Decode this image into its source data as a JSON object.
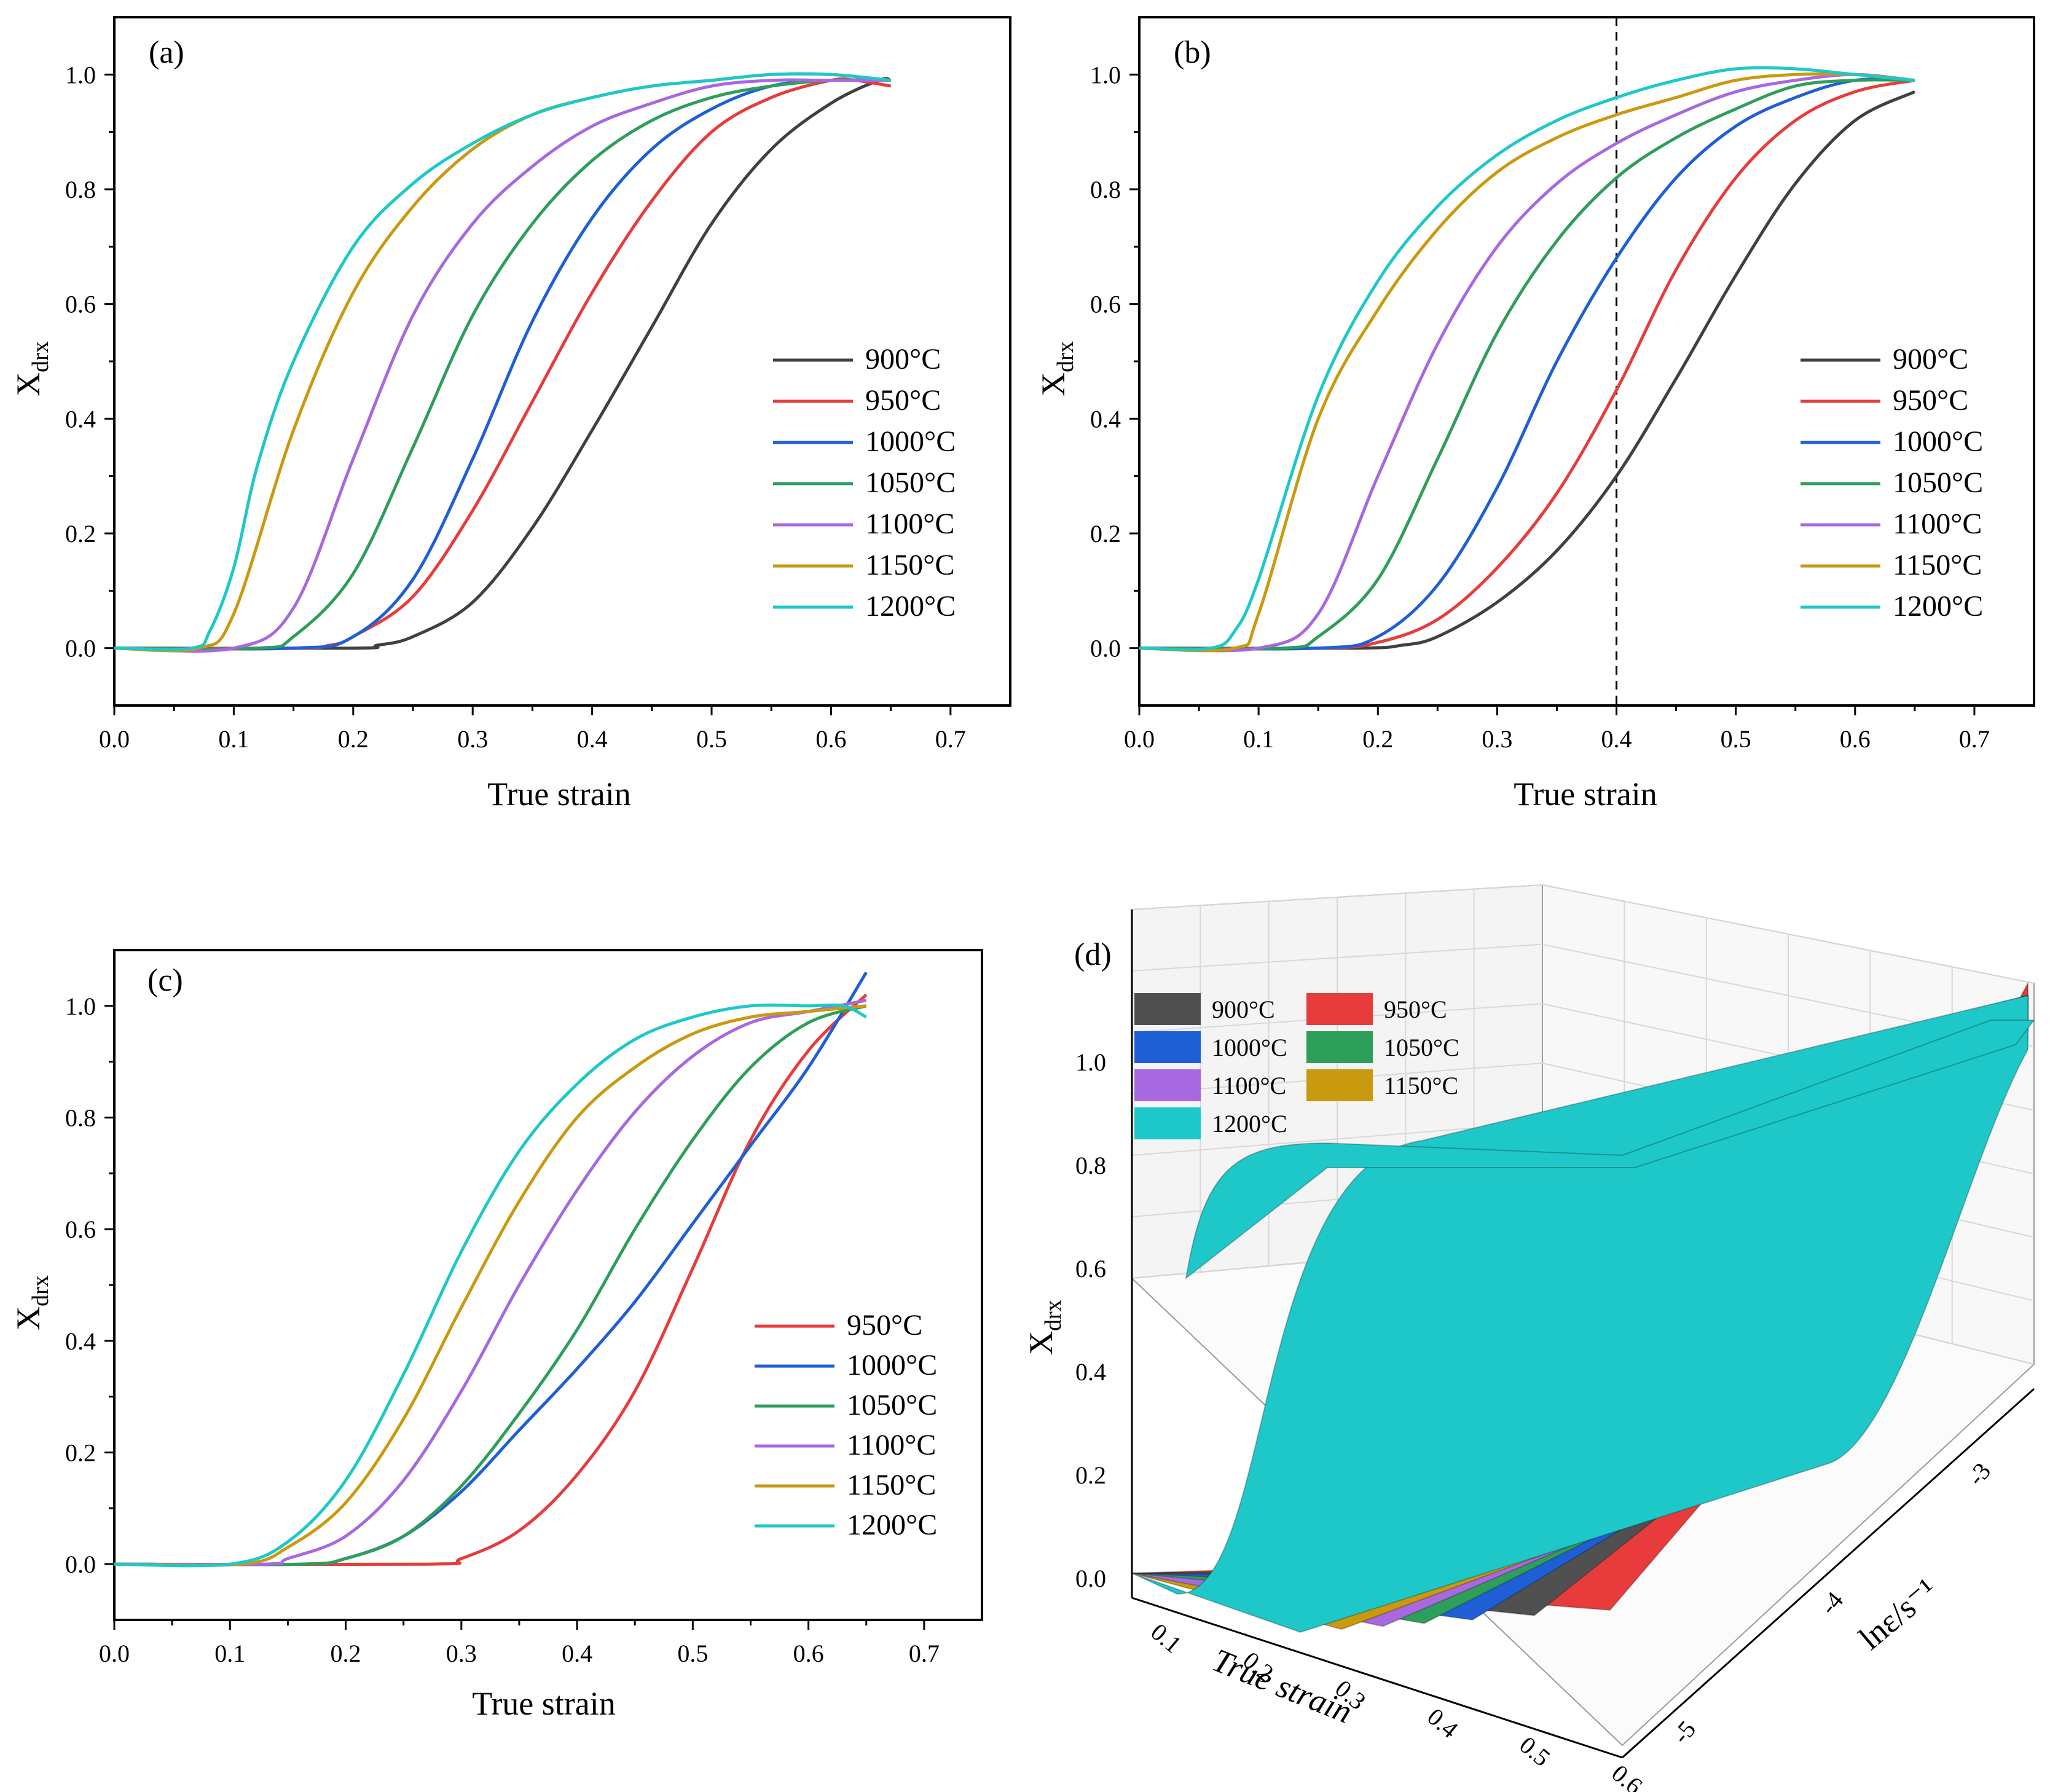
{
  "chart_data": [
    {
      "type": "line",
      "panel_label": "(a)",
      "xlabel": "True strain",
      "ylabel_main": "X",
      "ylabel_sub": "drx",
      "xlim": [
        0.0,
        0.75
      ],
      "ylim": [
        -0.1,
        1.1
      ],
      "x_ticks": [
        "0.0",
        "0.1",
        "0.2",
        "0.3",
        "0.4",
        "0.5",
        "0.6",
        "0.7"
      ],
      "y_ticks": [
        "0.0",
        "0.2",
        "0.4",
        "0.6",
        "0.8",
        "1.0"
      ],
      "legend_position": "lower-right",
      "series": [
        {
          "name": "900°C",
          "color": "#404040",
          "x": [
            0.0,
            0.2,
            0.22,
            0.25,
            0.3,
            0.35,
            0.4,
            0.45,
            0.5,
            0.55,
            0.6,
            0.64,
            0.65
          ],
          "y": [
            0.0,
            0.0,
            0.005,
            0.02,
            0.08,
            0.21,
            0.38,
            0.56,
            0.74,
            0.87,
            0.95,
            0.99,
            0.99
          ]
        },
        {
          "name": "950°C",
          "color": "#e83c3c",
          "x": [
            0.0,
            0.15,
            0.18,
            0.2,
            0.25,
            0.3,
            0.35,
            0.4,
            0.45,
            0.5,
            0.55,
            0.6,
            0.62,
            0.65
          ],
          "y": [
            0.0,
            0.0,
            0.005,
            0.02,
            0.09,
            0.24,
            0.43,
            0.62,
            0.78,
            0.9,
            0.96,
            0.99,
            0.99,
            0.98
          ]
        },
        {
          "name": "1000°C",
          "color": "#1f5fd6",
          "x": [
            0.0,
            0.15,
            0.2,
            0.25,
            0.3,
            0.35,
            0.4,
            0.45,
            0.5,
            0.55,
            0.6,
            0.65
          ],
          "y": [
            0.0,
            0.0,
            0.02,
            0.12,
            0.33,
            0.57,
            0.75,
            0.87,
            0.94,
            0.98,
            0.99,
            0.99
          ]
        },
        {
          "name": "1050°C",
          "color": "#2e9e5b",
          "x": [
            0.0,
            0.12,
            0.15,
            0.2,
            0.25,
            0.3,
            0.35,
            0.4,
            0.45,
            0.5,
            0.55,
            0.6,
            0.65
          ],
          "y": [
            0.0,
            0.0,
            0.02,
            0.13,
            0.35,
            0.58,
            0.74,
            0.85,
            0.92,
            0.96,
            0.98,
            0.99,
            0.99
          ]
        },
        {
          "name": "1100°C",
          "color": "#a868e0",
          "x": [
            0.0,
            0.1,
            0.15,
            0.2,
            0.25,
            0.3,
            0.35,
            0.4,
            0.45,
            0.5,
            0.55,
            0.6,
            0.65
          ],
          "y": [
            0.0,
            0.0,
            0.07,
            0.33,
            0.58,
            0.74,
            0.84,
            0.91,
            0.95,
            0.98,
            0.99,
            0.99,
            0.99
          ]
        },
        {
          "name": "1150°C",
          "color": "#c99a10",
          "x": [
            0.0,
            0.07,
            0.1,
            0.15,
            0.2,
            0.25,
            0.3,
            0.35,
            0.4,
            0.45,
            0.5,
            0.55,
            0.6,
            0.65
          ],
          "y": [
            0.0,
            0.0,
            0.06,
            0.38,
            0.62,
            0.77,
            0.87,
            0.93,
            0.96,
            0.98,
            0.99,
            1.0,
            1.0,
            0.99
          ]
        },
        {
          "name": "1200°C",
          "color": "#1ec8c8",
          "x": [
            0.0,
            0.065,
            0.08,
            0.1,
            0.12,
            0.15,
            0.2,
            0.25,
            0.3,
            0.35,
            0.4,
            0.45,
            0.5,
            0.55,
            0.6,
            0.65
          ],
          "y": [
            0.0,
            0.0,
            0.03,
            0.14,
            0.32,
            0.5,
            0.7,
            0.81,
            0.88,
            0.93,
            0.96,
            0.98,
            0.99,
            1.0,
            1.0,
            0.99
          ]
        }
      ]
    },
    {
      "type": "line",
      "panel_label": "(b)",
      "xlabel": "True strain",
      "ylabel_main": "X",
      "ylabel_sub": "drx",
      "xlim": [
        0.0,
        0.75
      ],
      "ylim": [
        -0.1,
        1.1
      ],
      "x_ticks": [
        "0.0",
        "0.1",
        "0.2",
        "0.3",
        "0.4",
        "0.5",
        "0.6",
        "0.7"
      ],
      "y_ticks": [
        "0.0",
        "0.2",
        "0.4",
        "0.6",
        "0.8",
        "1.0"
      ],
      "vline_x": 0.4,
      "legend_position": "lower-right",
      "series": [
        {
          "name": "900°C",
          "color": "#404040",
          "x": [
            0.0,
            0.18,
            0.22,
            0.25,
            0.3,
            0.35,
            0.4,
            0.45,
            0.5,
            0.55,
            0.6,
            0.65
          ],
          "y": [
            0.0,
            0.0,
            0.005,
            0.02,
            0.08,
            0.17,
            0.3,
            0.47,
            0.65,
            0.81,
            0.92,
            0.97
          ]
        },
        {
          "name": "950°C",
          "color": "#e83c3c",
          "x": [
            0.0,
            0.15,
            0.2,
            0.25,
            0.3,
            0.35,
            0.4,
            0.45,
            0.5,
            0.55,
            0.6,
            0.65
          ],
          "y": [
            0.0,
            0.0,
            0.01,
            0.05,
            0.14,
            0.27,
            0.45,
            0.66,
            0.82,
            0.92,
            0.97,
            0.99
          ]
        },
        {
          "name": "1000°C",
          "color": "#1f5fd6",
          "x": [
            0.0,
            0.15,
            0.2,
            0.25,
            0.3,
            0.35,
            0.4,
            0.45,
            0.5,
            0.55,
            0.6,
            0.65
          ],
          "y": [
            0.0,
            0.0,
            0.02,
            0.11,
            0.28,
            0.5,
            0.68,
            0.82,
            0.91,
            0.96,
            0.99,
            0.99
          ]
        },
        {
          "name": "1050°C",
          "color": "#2e9e5b",
          "x": [
            0.0,
            0.12,
            0.15,
            0.2,
            0.25,
            0.3,
            0.35,
            0.4,
            0.45,
            0.5,
            0.55,
            0.6,
            0.65
          ],
          "y": [
            0.0,
            0.0,
            0.02,
            0.12,
            0.33,
            0.55,
            0.71,
            0.82,
            0.89,
            0.94,
            0.98,
            0.99,
            0.99
          ]
        },
        {
          "name": "1100°C",
          "color": "#a868e0",
          "x": [
            0.0,
            0.1,
            0.15,
            0.2,
            0.25,
            0.3,
            0.35,
            0.4,
            0.45,
            0.5,
            0.55,
            0.6,
            0.65
          ],
          "y": [
            0.0,
            0.0,
            0.06,
            0.3,
            0.53,
            0.7,
            0.81,
            0.88,
            0.93,
            0.97,
            0.99,
            1.0,
            0.99
          ]
        },
        {
          "name": "1150°C",
          "color": "#c99a10",
          "x": [
            0.0,
            0.08,
            0.1,
            0.15,
            0.2,
            0.25,
            0.3,
            0.35,
            0.4,
            0.45,
            0.5,
            0.55,
            0.6,
            0.65
          ],
          "y": [
            0.0,
            0.0,
            0.06,
            0.4,
            0.59,
            0.73,
            0.83,
            0.89,
            0.93,
            0.96,
            0.99,
            1.0,
            1.0,
            0.99
          ]
        },
        {
          "name": "1200°C",
          "color": "#1ec8c8",
          "x": [
            0.0,
            0.06,
            0.08,
            0.1,
            0.15,
            0.2,
            0.25,
            0.3,
            0.35,
            0.4,
            0.45,
            0.5,
            0.55,
            0.6,
            0.65
          ],
          "y": [
            0.0,
            0.0,
            0.03,
            0.12,
            0.44,
            0.64,
            0.77,
            0.86,
            0.92,
            0.96,
            0.99,
            1.01,
            1.01,
            1.0,
            0.99
          ]
        }
      ]
    },
    {
      "type": "line",
      "panel_label": "(c)",
      "xlabel": "True strain",
      "ylabel_main": "X",
      "ylabel_sub": "drx",
      "xlim": [
        0.0,
        0.75
      ],
      "ylim": [
        -0.1,
        1.1
      ],
      "x_ticks": [
        "0.0",
        "0.1",
        "0.2",
        "0.3",
        "0.4",
        "0.5",
        "0.6",
        "0.7"
      ],
      "y_ticks": [
        "0.0",
        "0.2",
        "0.4",
        "0.6",
        "0.8",
        "1.0"
      ],
      "legend_position": "lower-right",
      "series": [
        {
          "name": "950°C",
          "color": "#e83c3c",
          "x": [
            0.0,
            0.27,
            0.3,
            0.35,
            0.4,
            0.45,
            0.5,
            0.55,
            0.6,
            0.65
          ],
          "y": [
            0.0,
            0.0,
            0.01,
            0.06,
            0.16,
            0.31,
            0.53,
            0.76,
            0.92,
            1.02
          ]
        },
        {
          "name": "1000°C",
          "color": "#1f5fd6",
          "x": [
            0.0,
            0.16,
            0.2,
            0.25,
            0.3,
            0.35,
            0.4,
            0.45,
            0.5,
            0.55,
            0.6,
            0.65
          ],
          "y": [
            0.0,
            0.0,
            0.01,
            0.05,
            0.13,
            0.24,
            0.35,
            0.47,
            0.61,
            0.75,
            0.89,
            1.06
          ]
        },
        {
          "name": "1050°C",
          "color": "#2e9e5b",
          "x": [
            0.0,
            0.16,
            0.2,
            0.25,
            0.3,
            0.35,
            0.4,
            0.45,
            0.5,
            0.55,
            0.6,
            0.65
          ],
          "y": [
            0.0,
            0.0,
            0.01,
            0.05,
            0.14,
            0.27,
            0.42,
            0.6,
            0.76,
            0.89,
            0.97,
            1.0
          ]
        },
        {
          "name": "1100°C",
          "color": "#a868e0",
          "x": [
            0.0,
            0.13,
            0.15,
            0.2,
            0.25,
            0.3,
            0.35,
            0.4,
            0.45,
            0.5,
            0.55,
            0.6,
            0.65
          ],
          "y": [
            0.0,
            0.0,
            0.01,
            0.05,
            0.15,
            0.31,
            0.5,
            0.67,
            0.81,
            0.91,
            0.97,
            0.99,
            1.01
          ]
        },
        {
          "name": "1150°C",
          "color": "#c99a10",
          "x": [
            0.0,
            0.11,
            0.15,
            0.2,
            0.25,
            0.3,
            0.35,
            0.4,
            0.45,
            0.5,
            0.55,
            0.6,
            0.65
          ],
          "y": [
            0.0,
            0.0,
            0.03,
            0.11,
            0.26,
            0.46,
            0.65,
            0.8,
            0.89,
            0.95,
            0.98,
            0.99,
            1.0
          ]
        },
        {
          "name": "1200°C",
          "color": "#1ec8c8",
          "x": [
            0.0,
            0.1,
            0.15,
            0.2,
            0.25,
            0.3,
            0.35,
            0.4,
            0.45,
            0.5,
            0.55,
            0.6,
            0.63,
            0.65
          ],
          "y": [
            0.0,
            0.0,
            0.04,
            0.15,
            0.34,
            0.56,
            0.74,
            0.86,
            0.94,
            0.98,
            1.0,
            1.0,
            1.0,
            0.98
          ]
        }
      ]
    },
    {
      "type": "surface3d",
      "panel_label": "(d)",
      "xlabel": "True strain",
      "ylabel": "lnε/s⁻¹",
      "zlabel_main": "X",
      "zlabel_sub": "drx",
      "z_ticks": [
        "0.0",
        "0.2",
        "0.4",
        "0.6",
        "0.8",
        "1.0"
      ],
      "x_ticks": [
        "0.1",
        "0.2",
        "0.3",
        "0.4",
        "0.5",
        "0.6"
      ],
      "y_ticks": [
        "-5",
        "-4",
        "-3"
      ],
      "legend": [
        {
          "name": "900°C",
          "color": "#505050"
        },
        {
          "name": "950°C",
          "color": "#e83c3c"
        },
        {
          "name": "1000°C",
          "color": "#1f5fd6"
        },
        {
          "name": "1050°C",
          "color": "#2e9e5b"
        },
        {
          "name": "1100°C",
          "color": "#a868e0"
        },
        {
          "name": "1150°C",
          "color": "#c99a10"
        },
        {
          "name": "1200°C",
          "color": "#1ec8c8"
        }
      ]
    }
  ]
}
